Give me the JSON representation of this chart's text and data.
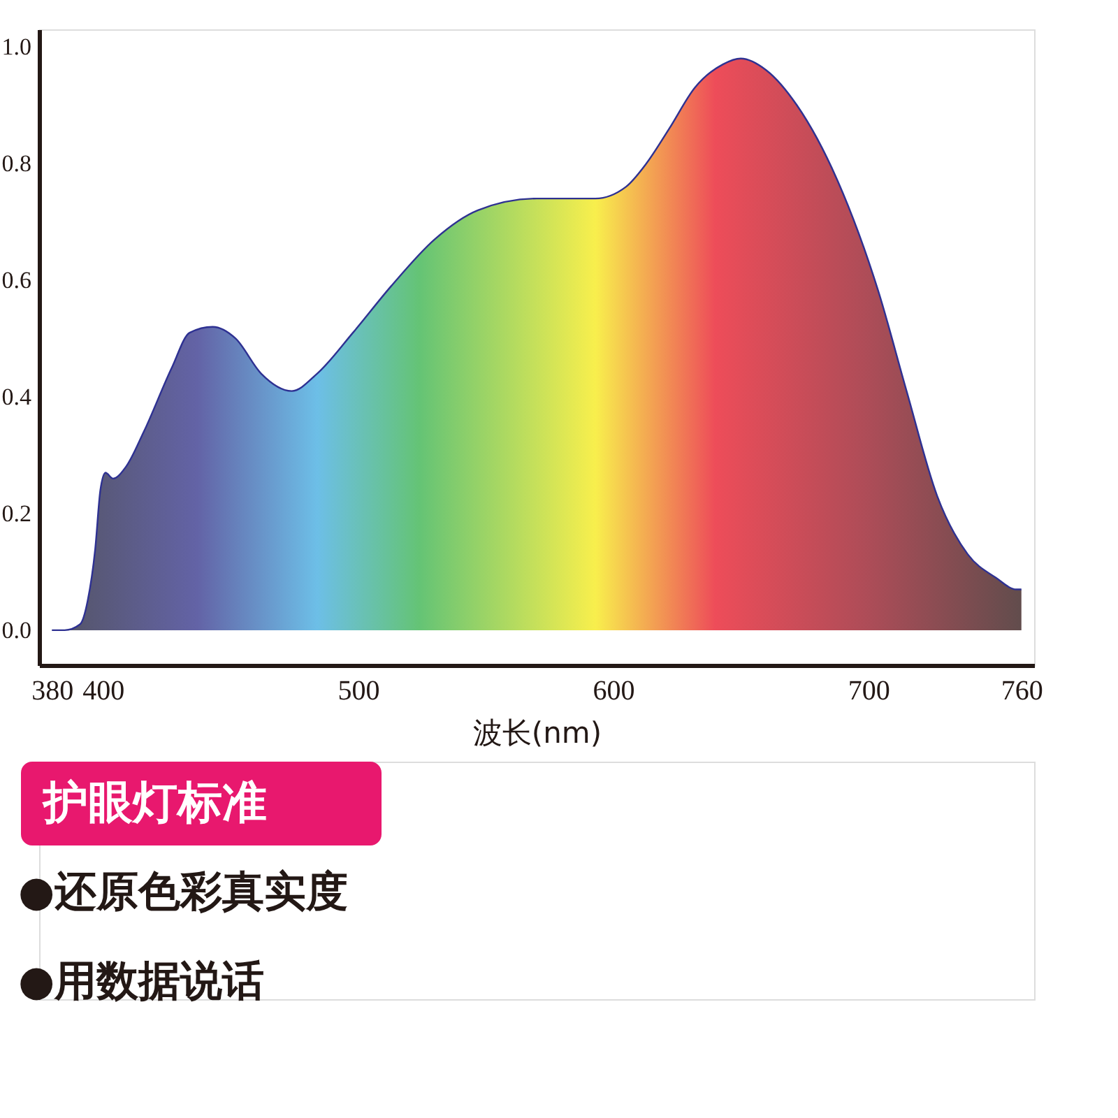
{
  "chart_data": {
    "type": "area",
    "xlabel": "波长(nm)",
    "xlim": [
      375,
      765
    ],
    "xticks": [
      380,
      400,
      500,
      600,
      700,
      760
    ],
    "ylim": [
      -0.06,
      1.03
    ],
    "yticks": [
      {
        "value": 0,
        "label": "0.0"
      },
      {
        "value": 0.2,
        "label": "0.2"
      },
      {
        "value": 0.4,
        "label": "0.4"
      },
      {
        "value": 0.6,
        "label": "0.6"
      },
      {
        "value": 0.8,
        "label": "0.8"
      },
      {
        "value": 1,
        "label": "1.0"
      }
    ],
    "series": [
      {
        "color": "#2e3192",
        "x": [
          380,
          385,
          391,
          394,
          397,
          399,
          401,
          404,
          409,
          416,
          427,
          434,
          443,
          452,
          462,
          474,
          484,
          498,
          513,
          530,
          547,
          570,
          593,
          605,
          613,
          622,
          632,
          643,
          650,
          660,
          672,
          688,
          704,
          715,
          727,
          739,
          750,
          758,
          760
        ],
        "values": [
          0,
          0.0,
          0.01,
          0.05,
          0.14,
          0.24,
          0.27,
          0.26,
          0.28,
          0.34,
          0.45,
          0.51,
          0.52,
          0.5,
          0.44,
          0.41,
          0.44,
          0.51,
          0.59,
          0.67,
          0.72,
          0.74,
          0.74,
          0.76,
          0.8,
          0.86,
          0.93,
          0.97,
          0.98,
          0.96,
          0.9,
          0.77,
          0.58,
          0.41,
          0.23,
          0.13,
          0.09,
          0.07,
          0.07
        ]
      }
    ],
    "annotations": [
      "护眼灯标准",
      "●还原色彩真实度",
      "●用数据说话"
    ]
  }
}
